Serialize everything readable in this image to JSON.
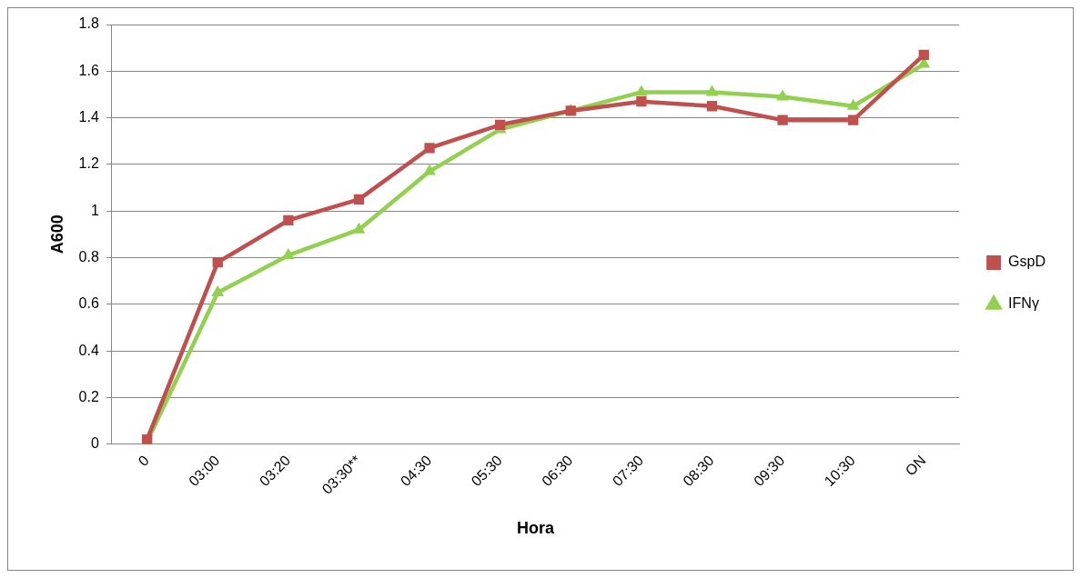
{
  "chart_data": {
    "type": "line",
    "xlabel": "Hora",
    "ylabel": "A600",
    "categories": [
      "0",
      "03:00",
      "03:20",
      "03:30**",
      "04:30",
      "05:30",
      "06:30",
      "07:30",
      "08:30",
      "09:30",
      "10:30",
      "ON"
    ],
    "series": [
      {
        "name": "IFNγ",
        "color": "#92d050",
        "marker": "triangle",
        "values": [
          0.01,
          0.65,
          0.81,
          0.92,
          1.17,
          1.35,
          1.43,
          1.51,
          1.51,
          1.49,
          1.45,
          1.63
        ]
      },
      {
        "name": "GspD",
        "color": "#c0504d",
        "marker": "square",
        "values": [
          0.02,
          0.78,
          0.96,
          1.05,
          1.27,
          1.37,
          1.43,
          1.47,
          1.45,
          1.39,
          1.39,
          1.67
        ]
      }
    ],
    "ylim": [
      0,
      1.8
    ],
    "yticks": [
      0,
      0.2,
      0.4,
      0.6,
      0.8,
      1,
      1.2,
      1.4,
      1.6,
      1.8
    ],
    "grid": "y",
    "legend": "right"
  }
}
